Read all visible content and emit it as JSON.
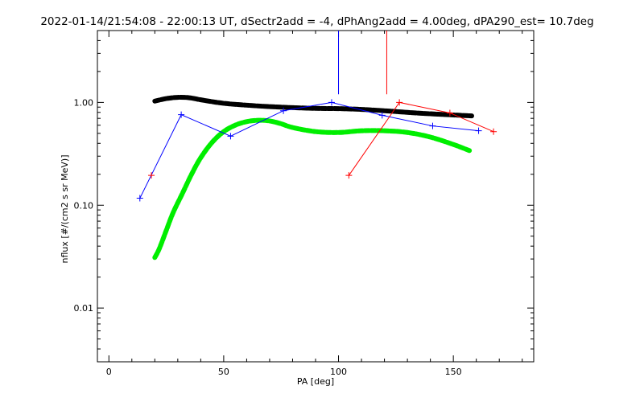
{
  "chart_data": {
    "type": "scatter",
    "title": "2022-01-14/21:54:08 - 22:00:13 UT, dSectr2add = -4, dPhAng2add = 4.00deg, dPA290_est=  10.7deg",
    "xlabel": "PA [deg]",
    "ylabel": "nflux [#/(cm2 s sr MeV)]",
    "xlim": [
      -5,
      185
    ],
    "ylim": [
      0.003,
      5
    ],
    "yscale": "log",
    "x_ticks": [
      0,
      50,
      100,
      150
    ],
    "x_tick_labels": [
      "0",
      "50",
      "100",
      "150"
    ],
    "y_ticks": [
      0.01,
      0.1,
      1.0
    ],
    "y_tick_labels": [
      "0.01",
      "0.10",
      "1.00"
    ],
    "grid": false,
    "series": [
      {
        "color": "#0000ff",
        "style": "line-plus",
        "x": [
          13.5,
          31.5,
          53,
          76,
          97,
          119,
          141,
          161
        ],
        "y": [
          0.117,
          0.76,
          0.47,
          0.83,
          1.0,
          0.75,
          0.59,
          0.53
        ]
      },
      {
        "color": "#ff0000",
        "style": "line-plus",
        "x": [
          18.5
        ],
        "y": [
          0.195
        ]
      },
      {
        "color": "#ff0000",
        "style": "line-plus",
        "x": [
          104.5,
          126.5,
          148.5,
          167.5
        ],
        "y": [
          0.195,
          1.0,
          0.79,
          0.52
        ]
      },
      {
        "color": "#000000",
        "style": "thick-dots",
        "x": [
          20,
          25,
          30,
          35,
          40,
          50,
          60,
          70,
          80,
          90,
          100,
          110,
          120,
          130,
          140,
          150,
          158
        ],
        "y": [
          1.03,
          1.09,
          1.12,
          1.11,
          1.06,
          0.98,
          0.94,
          0.91,
          0.89,
          0.875,
          0.87,
          0.855,
          0.83,
          0.8,
          0.775,
          0.755,
          0.74
        ]
      },
      {
        "color": "#00ee00",
        "style": "thick-dots",
        "x": [
          20,
          22,
          25,
          28,
          32,
          36,
          40,
          45,
          50,
          55,
          60,
          65,
          70,
          75,
          80,
          90,
          100,
          110,
          120,
          130,
          140,
          150,
          157
        ],
        "y": [
          0.031,
          0.038,
          0.057,
          0.085,
          0.13,
          0.2,
          0.29,
          0.41,
          0.52,
          0.6,
          0.65,
          0.67,
          0.66,
          0.62,
          0.57,
          0.52,
          0.51,
          0.53,
          0.53,
          0.51,
          0.46,
          0.39,
          0.34
        ]
      }
    ],
    "vertical_lines": [
      {
        "color": "#0000ff",
        "x": 100,
        "y_bottom": 1.2
      },
      {
        "color": "#ff0000",
        "x": 121,
        "y_bottom": 1.2
      }
    ]
  }
}
